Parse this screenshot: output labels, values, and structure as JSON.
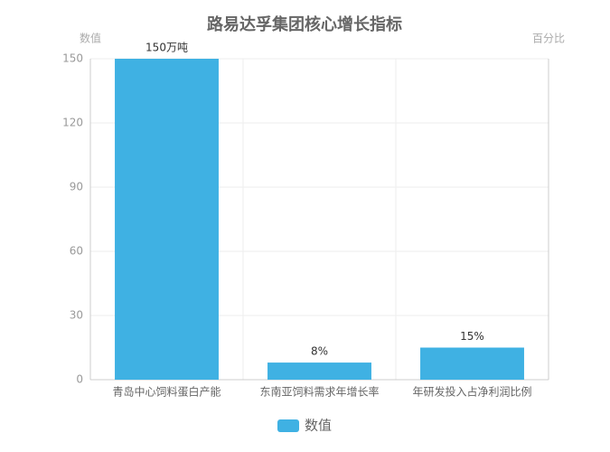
{
  "chart_data": {
    "type": "bar",
    "title": "路易达孚集团核心增长指标",
    "y_label": "数值",
    "y2_label": "百分比",
    "categories": [
      "青岛中心饲料蛋白产能",
      "东南亚饲料需求年增长率",
      "年研发投入占净利润比例"
    ],
    "series": [
      {
        "name": "数值",
        "color": "#3fb1e3",
        "values": [
          150,
          8,
          15
        ],
        "value_labels": [
          "150万吨",
          "8%",
          "15%"
        ]
      }
    ],
    "ylim": [
      0,
      150
    ],
    "yticks": [
      0,
      30,
      60,
      90,
      120,
      150
    ],
    "grid": true,
    "legend": "bottom"
  }
}
